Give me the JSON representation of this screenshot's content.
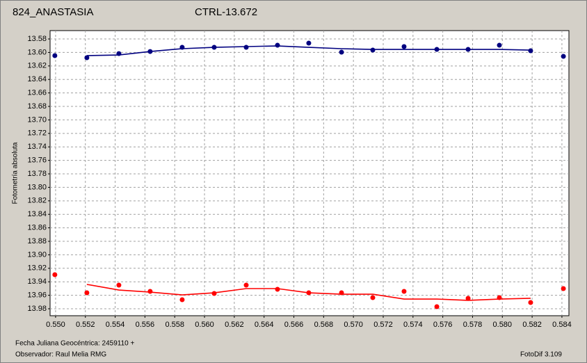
{
  "chart_data": {
    "type": "scatter",
    "y_label": "Fotometría absoluta",
    "x_label": "Fecha Juliana Geocéntrica: 2459110 +",
    "observer": "Observador: Raul Melia RMG",
    "software": "FotoDif 3.109",
    "grid": true,
    "y_inverted": true,
    "xlim": [
      0.54963,
      0.58447
    ],
    "ylim": [
      13.5676,
      13.9903
    ],
    "xticks": [
      {
        "value": 0.55,
        "label": "0.550"
      },
      0.552,
      0.554,
      0.556,
      0.558,
      {
        "value": 0.56,
        "label": "0.560"
      },
      0.562,
      0.564,
      0.566,
      0.568,
      {
        "value": 0.57,
        "label": "0.570"
      },
      0.572,
      0.574,
      0.576,
      0.578,
      {
        "value": 0.58,
        "label": "0.580"
      },
      0.582,
      0.584
    ],
    "yticks": [
      13.58,
      {
        "value": 13.6,
        "label": "13.60"
      },
      13.62,
      13.64,
      13.66,
      13.68,
      {
        "value": 13.7,
        "label": "13.70"
      },
      13.72,
      13.74,
      13.76,
      13.78,
      {
        "value": 13.8,
        "label": "13.80"
      },
      13.82,
      13.84,
      13.86,
      13.88,
      {
        "value": 13.9,
        "label": "13.90"
      },
      13.92,
      13.94,
      13.96,
      13.98
    ],
    "series": [
      {
        "name": "824_ANASTASIA",
        "color": "#ff0000",
        "x": [
          0.54995,
          0.5521,
          0.55425,
          0.55635,
          0.5585,
          0.56065,
          0.5628,
          0.5649,
          0.567,
          0.5692,
          0.5713,
          0.5734,
          0.5756,
          0.5777,
          0.5798,
          0.5819,
          0.5841
        ],
        "values": [
          13.9295,
          13.9563,
          13.945,
          13.9542,
          13.9666,
          13.9573,
          13.945,
          13.9511,
          13.9563,
          13.9563,
          13.9635,
          13.9542,
          13.9769,
          13.9645,
          13.9635,
          13.9707,
          13.9501
        ],
        "fit_x": [
          0.5521,
          0.55425,
          0.55635,
          0.5585,
          0.56065,
          0.5628,
          0.5649,
          0.567,
          0.5692,
          0.5713,
          0.5734,
          0.5756,
          0.5777,
          0.5798,
          0.5819
        ],
        "fit_values": [
          13.9439,
          13.9522,
          13.9553,
          13.9594,
          13.9563,
          13.9501,
          13.9501,
          13.9563,
          13.9584,
          13.9584,
          13.9656,
          13.9656,
          13.9676,
          13.9656,
          13.9645
        ]
      },
      {
        "name": "CTRL-13.672",
        "color": "#000080",
        "x": [
          0.54995,
          0.5521,
          0.55425,
          0.55635,
          0.5585,
          0.56065,
          0.5628,
          0.5649,
          0.567,
          0.5692,
          0.5713,
          0.5734,
          0.5756,
          0.5777,
          0.5798,
          0.5819,
          0.5841
        ],
        "values": [
          13.6047,
          13.6078,
          13.6017,
          13.5986,
          13.5924,
          13.5924,
          13.5924,
          13.5893,
          13.5862,
          13.5996,
          13.5965,
          13.5913,
          13.5955,
          13.5955,
          13.5893,
          13.5975,
          13.6058
        ],
        "fit_x": [
          0.5521,
          0.55425,
          0.55635,
          0.5585,
          0.56065,
          0.5628,
          0.5649,
          0.567,
          0.5692,
          0.5713,
          0.5734,
          0.5756,
          0.5777,
          0.5798,
          0.5819
        ],
        "fit_values": [
          13.6047,
          13.6037,
          13.5986,
          13.5944,
          13.5924,
          13.5913,
          13.5903,
          13.5924,
          13.5944,
          13.5955,
          13.5955,
          13.5955,
          13.5955,
          13.5955,
          13.5965
        ]
      }
    ]
  }
}
